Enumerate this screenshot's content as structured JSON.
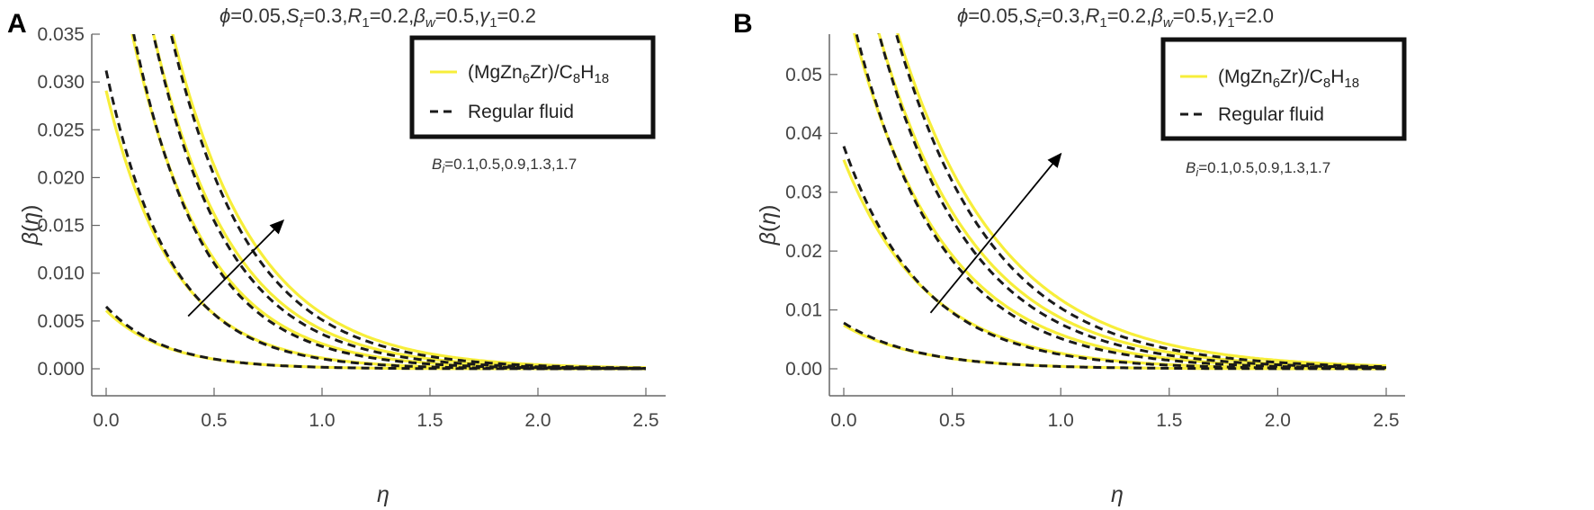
{
  "figure": {
    "panels": [
      {
        "letter": "A",
        "title": "ϕ=0.05,St=0.3,R1=0.2,βw=0.5,γ1=0.2",
        "annotation": "Bi=0.1,0.5,0.9,1.3,1.7",
        "legend": [
          "(MgZn6Zr)/C8H18",
          "Regular fluid"
        ]
      },
      {
        "letter": "B",
        "title": "ϕ=0.05,St=0.3,R1=0.2,βw=0.5,γ1=2.0",
        "annotation": "Bi=0.1,0.5,0.9,1.3,1.7",
        "legend": [
          "(MgZn6Zr)/C8H18",
          "Regular fluid"
        ]
      }
    ]
  },
  "chart_data": [
    {
      "type": "line",
      "title": "ϕ=0.05,St=0.3,R1=0.2,βw=0.5,γ1=0.2",
      "xlabel": "η",
      "ylabel": "β(η)",
      "xlim": [
        0,
        2.5
      ],
      "ylim": [
        0,
        0.035
      ],
      "xticks": [
        0.0,
        0.5,
        1.0,
        1.5,
        2.0,
        2.5
      ],
      "xtick_labels": [
        "0.0",
        "0.5",
        "1.0",
        "1.5",
        "2.0",
        "2.5"
      ],
      "yticks": [
        0,
        0.005,
        0.01,
        0.015,
        0.02,
        0.025,
        0.03,
        0.035
      ],
      "ytick_labels": [
        "0.000",
        "0.005",
        "0.010",
        "0.015",
        "0.020",
        "0.025",
        "0.030",
        "0.035"
      ],
      "grid": false,
      "legend_position": "top-right",
      "parameter": "Bi",
      "parameter_values": [
        0.1,
        0.5,
        0.9,
        1.3,
        1.7
      ],
      "arrow": {
        "from": [
          0.38,
          0.0055
        ],
        "to": [
          0.82,
          0.0155
        ]
      },
      "series": [
        {
          "name": "(MgZn6Zr)/C8H18",
          "color": "#f7ee3a",
          "dash": "solid",
          "curves": [
            {
              "Bi": 0.1,
              "y0": 0.0061,
              "decay": 3.6
            },
            {
              "Bi": 0.5,
              "y0": 0.0291,
              "decay": 3.25
            },
            {
              "Bi": 0.9,
              "y0": 0.05,
              "decay": 2.95
            },
            {
              "Bi": 1.3,
              "y0": 0.064,
              "decay": 2.75
            },
            {
              "Bi": 1.7,
              "y0": 0.078,
              "decay": 2.6
            }
          ]
        },
        {
          "name": "Regular fluid",
          "color": "#1a1a1a",
          "dash": "dashed",
          "curves": [
            {
              "Bi": 0.1,
              "y0": 0.0065,
              "decay": 3.7
            },
            {
              "Bi": 0.5,
              "y0": 0.0312,
              "decay": 3.4
            },
            {
              "Bi": 0.9,
              "y0": 0.052,
              "decay": 3.1
            },
            {
              "Bi": 1.3,
              "y0": 0.066,
              "decay": 2.9
            },
            {
              "Bi": 1.7,
              "y0": 0.08,
              "decay": 2.75
            }
          ]
        }
      ]
    },
    {
      "type": "line",
      "title": "ϕ=0.05,St=0.3,R1=0.2,βw=0.5,γ1=2.0",
      "xlabel": "η",
      "ylabel": "β(η)",
      "xlim": [
        0,
        2.5
      ],
      "ylim": [
        0,
        0.057
      ],
      "xticks": [
        0.0,
        0.5,
        1.0,
        1.5,
        2.0,
        2.5
      ],
      "xtick_labels": [
        "0.0",
        "0.5",
        "1.0",
        "1.5",
        "2.0",
        "2.5"
      ],
      "yticks": [
        0,
        0.01,
        0.02,
        0.03,
        0.04,
        0.05
      ],
      "ytick_labels": [
        "0.00",
        "0.01",
        "0.02",
        "0.03",
        "0.04",
        "0.05"
      ],
      "grid": false,
      "legend_position": "top-right",
      "parameter": "Bi",
      "parameter_values": [
        0.1,
        0.5,
        0.9,
        1.3,
        1.7
      ],
      "arrow": {
        "from": [
          0.4,
          0.0095
        ],
        "to": [
          1.0,
          0.0365
        ]
      },
      "series": [
        {
          "name": "(MgZn6Zr)/C8H18",
          "color": "#f7ee3a",
          "dash": "solid",
          "curves": [
            {
              "Bi": 0.1,
              "y0": 0.0074,
              "decay": 2.9
            },
            {
              "Bi": 0.5,
              "y0": 0.0355,
              "decay": 2.6
            },
            {
              "Bi": 0.9,
              "y0": 0.064,
              "decay": 2.4
            },
            {
              "Bi": 1.3,
              "y0": 0.082,
              "decay": 2.25
            },
            {
              "Bi": 1.7,
              "y0": 0.096,
              "decay": 2.1
            }
          ]
        },
        {
          "name": "Regular fluid",
          "color": "#1a1a1a",
          "dash": "dashed",
          "curves": [
            {
              "Bi": 0.1,
              "y0": 0.0078,
              "decay": 3.0
            },
            {
              "Bi": 0.5,
              "y0": 0.0378,
              "decay": 2.75
            },
            {
              "Bi": 0.9,
              "y0": 0.066,
              "decay": 2.55
            },
            {
              "Bi": 1.3,
              "y0": 0.084,
              "decay": 2.4
            },
            {
              "Bi": 1.7,
              "y0": 0.098,
              "decay": 2.25
            }
          ]
        }
      ]
    }
  ]
}
